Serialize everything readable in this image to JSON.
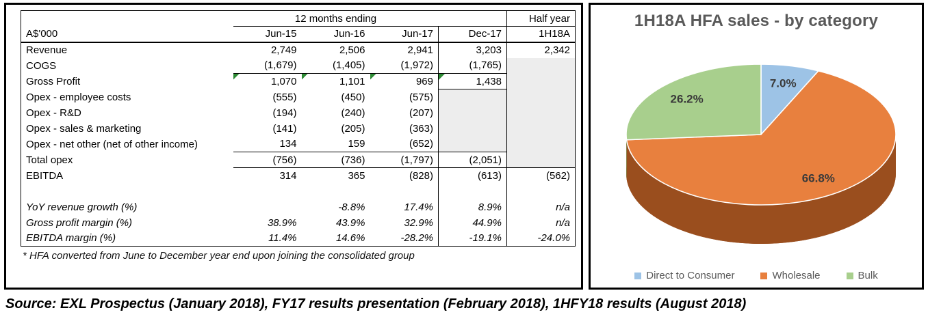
{
  "table": {
    "unit_label": "A$'000",
    "period_header": "12 months ending",
    "half_year_header": "Half year",
    "columns": [
      "Jun-15",
      "Jun-16",
      "Jun-17",
      "Dec-17",
      "1H18A"
    ],
    "rows": [
      {
        "id": "revenue",
        "label": "Revenue",
        "bold": true,
        "values": [
          "2,749",
          "2,506",
          "2,941",
          "3,203",
          "2,342"
        ]
      },
      {
        "id": "cogs",
        "label": "COGS",
        "values": [
          "(1,679)",
          "(1,405)",
          "(1,972)",
          "(1,765)",
          ""
        ]
      },
      {
        "id": "gross-profit",
        "label": "Gross Profit",
        "bold": true,
        "unbold_values": [
          2
        ],
        "values": [
          "1,070",
          "1,101",
          "969",
          "1,438",
          ""
        ]
      },
      {
        "id": "opex-employee",
        "label": "Opex - employee costs",
        "values": [
          "(555)",
          "(450)",
          "(575)",
          "",
          ""
        ]
      },
      {
        "id": "opex-rd",
        "label": "Opex - R&D",
        "values": [
          "(194)",
          "(240)",
          "(207)",
          "",
          ""
        ]
      },
      {
        "id": "opex-sm",
        "label": "Opex - sales & marketing",
        "values": [
          "(141)",
          "(205)",
          "(363)",
          "",
          ""
        ]
      },
      {
        "id": "opex-net-other",
        "label": "Opex - net other (net of other income)",
        "values": [
          "134",
          "159",
          "(652)",
          "",
          ""
        ]
      },
      {
        "id": "total-opex",
        "label": "Total opex",
        "values": [
          "(756)",
          "(736)",
          "(1,797)",
          "(2,051)",
          ""
        ]
      },
      {
        "id": "ebitda",
        "label": "EBITDA",
        "bold": true,
        "values": [
          "314",
          "365",
          "(828)",
          "(613)",
          "(562)"
        ]
      },
      {
        "id": "spacer",
        "label": "",
        "values": [
          "",
          "",
          "",
          "",
          ""
        ]
      },
      {
        "id": "yoy-growth",
        "label": "YoY revenue growth (%)",
        "italic": true,
        "values": [
          "",
          "-8.8%",
          "17.4%",
          "8.9%",
          "n/a"
        ]
      },
      {
        "id": "gp-margin",
        "label": "Gross profit margin (%)",
        "italic": true,
        "values": [
          "38.9%",
          "43.9%",
          "32.9%",
          "44.9%",
          "n/a"
        ]
      },
      {
        "id": "ebitda-margin",
        "label": "EBITDA margin (%)",
        "italic": true,
        "values": [
          "11.4%",
          "14.6%",
          "-28.2%",
          "-19.1%",
          "-24.0%"
        ]
      }
    ],
    "footnote": "* HFA converted from June to December year end upon joining the consolidated group"
  },
  "chart_data": {
    "type": "pie",
    "effect": "3d",
    "title": "1H18A HFA sales - by category",
    "labels": [
      "Direct to Consumer",
      "Wholesale",
      "Bulk"
    ],
    "values": [
      7.0,
      66.8,
      26.2
    ],
    "data_labels": [
      "7.0%",
      "66.8%",
      "26.2%"
    ],
    "colors": [
      "#9dc3e6",
      "#e8803e",
      "#a8cf8d"
    ],
    "side_colors": [
      "#6b93bb",
      "#9a4e1e",
      "#7a9e5c"
    ],
    "legend_position": "bottom"
  },
  "source_line": "Source: EXL Prospectus (January 2018), FY17 results presentation (February 2018), 1HFY18 results (August 2018)"
}
